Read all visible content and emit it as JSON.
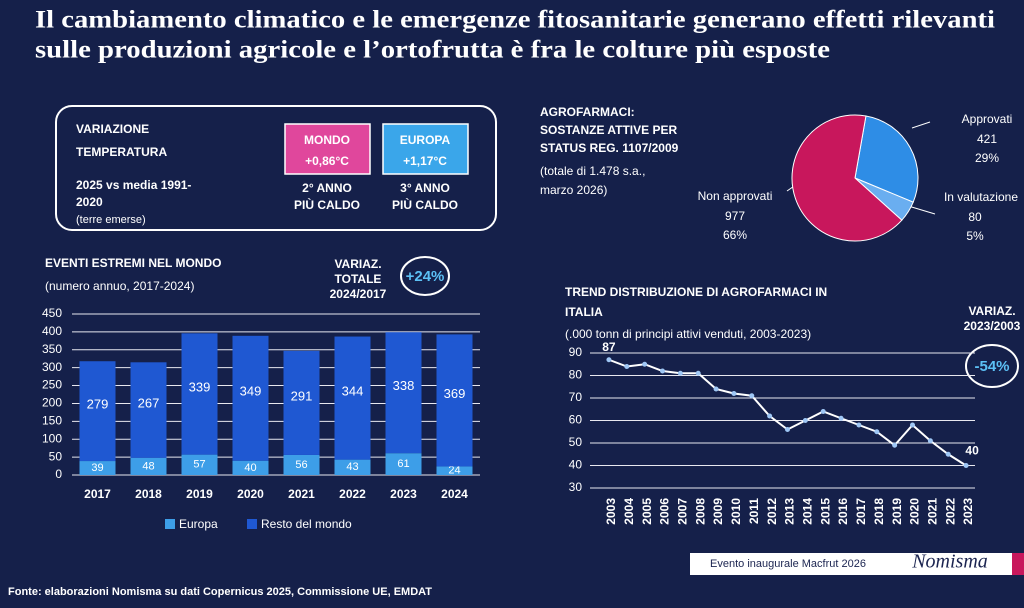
{
  "title_lines": [
    "Il cambiamento climatico e le emergenze fitosanitarie generano effetti rilevanti",
    "sulle produzioni agricole e l’ortofrutta è fra le colture più esposte"
  ],
  "temperature": {
    "label_lines": [
      "VARIAZIONE",
      "TEMPERATURA"
    ],
    "period_lines": [
      "2025 vs media 1991-",
      "2020"
    ],
    "note": "(terre emerse)",
    "boxes": [
      {
        "name": "MONDO",
        "value": "+0,86°C",
        "rank_lines": [
          "2° ANNO",
          "PIÙ CALDO"
        ],
        "color": "#e0479c"
      },
      {
        "name": "EUROPA",
        "value": "+1,17°C",
        "rank_lines": [
          "3° ANNO",
          "PIÙ CALDO"
        ],
        "color": "#3aa6ea"
      }
    ]
  },
  "chart_data": [
    {
      "type": "bar",
      "stacked": true,
      "title": "EVENTI ESTREMI NEL MONDO",
      "subtitle": "(numero annuo, 2017-2024)",
      "annotation_lines": [
        "VARIAZ.",
        "TOTALE",
        "2024/2017"
      ],
      "badge": "+24%",
      "categories": [
        "2017",
        "2018",
        "2019",
        "2020",
        "2021",
        "2022",
        "2023",
        "2024"
      ],
      "series": [
        {
          "name": "Europa",
          "color": "#3d9ee8",
          "values": [
            39,
            48,
            57,
            40,
            56,
            43,
            61,
            24
          ]
        },
        {
          "name": "Resto del mondo",
          "color": "#1f58d2",
          "values": [
            279,
            267,
            339,
            349,
            291,
            344,
            338,
            369
          ]
        }
      ],
      "ylim": [
        0,
        450
      ],
      "yticks": [
        0,
        50,
        100,
        150,
        200,
        250,
        300,
        350,
        400,
        450
      ],
      "grid": true
    },
    {
      "type": "pie",
      "title_lines": [
        "AGROFARMACI:",
        "SOSTANZE ATTIVE PER",
        "STATUS REG. 1107/2009"
      ],
      "subtitle_lines": [
        "(totale di 1.478 s.a.,",
        "marzo 2026)"
      ],
      "categories": [
        "Approvati",
        "In valutazione",
        "Non approvati"
      ],
      "values": [
        421,
        80,
        977
      ],
      "percent_labels": [
        "29%",
        "5%",
        "66%"
      ],
      "colors": [
        "#2e8de6",
        "#6aaef0",
        "#c8175c"
      ]
    },
    {
      "type": "line",
      "title_lines": [
        "TREND DISTRIBUZIONE DI AGROFARMACI IN",
        "ITALIA"
      ],
      "subtitle": "(.000 tonn di principi attivi venduti, 2003-2023)",
      "annotation_lines": [
        "VARIAZ.",
        "2023/2003"
      ],
      "badge": "-54%",
      "categories": [
        "2003",
        "2004",
        "2005",
        "2006",
        "2007",
        "2008",
        "2009",
        "2010",
        "2011",
        "2012",
        "2013",
        "2014",
        "2015",
        "2016",
        "2017",
        "2018",
        "2019",
        "2020",
        "2021",
        "2022",
        "2023"
      ],
      "values": [
        87,
        84,
        85,
        82,
        81,
        81,
        74,
        72,
        71,
        62,
        56,
        60,
        64,
        61,
        58,
        55,
        49,
        58,
        51,
        45,
        40
      ],
      "color": "#ffffff",
      "ylim": [
        30,
        90
      ],
      "yticks": [
        30,
        40,
        50,
        60,
        70,
        80,
        90
      ],
      "grid": true
    }
  ],
  "footer": {
    "source": "Fonte: elaborazioni Nomisma su dati Copernicus 2025, Commissione UE, EMDAT",
    "event": "Evento inaugurale Macfrut 2026",
    "brand": "Nomisma"
  }
}
